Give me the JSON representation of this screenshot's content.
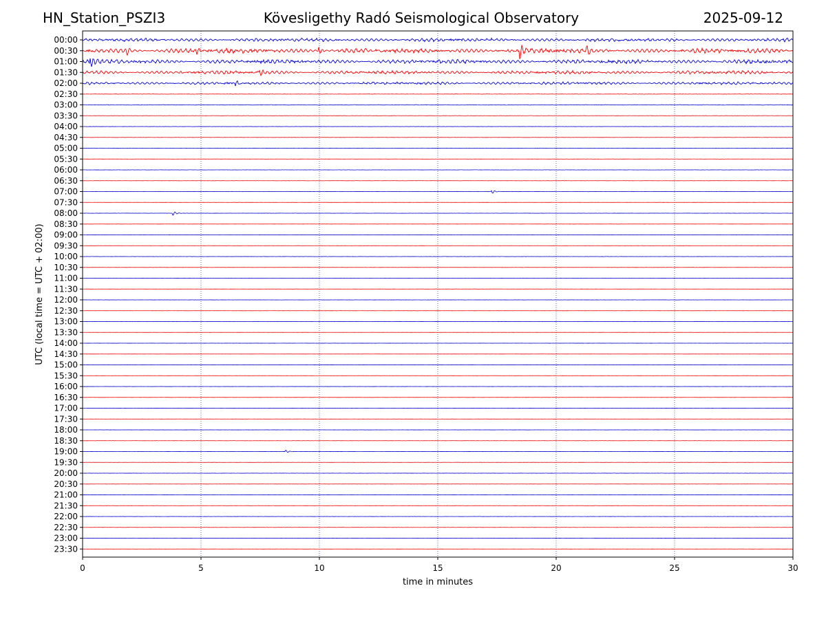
{
  "header": {
    "station": "HN_Station_PSZI3",
    "observatory": "Kövesligethy Radó Seismological Observatory",
    "date": "2025-09-12"
  },
  "chart_data": {
    "type": "line",
    "xlabel": "time in minutes",
    "ylabel": "UTC (local time = UTC + 02:00)",
    "xlim": [
      0,
      30
    ],
    "x_ticks": [
      "0",
      "5",
      "10",
      "15",
      "20",
      "25",
      "30"
    ],
    "x_tick_values": [
      0,
      5,
      10,
      15,
      20,
      25,
      30
    ],
    "grid": "vertical dotted at x ticks",
    "trace_colors": [
      "#0000cc",
      "#ee0000"
    ],
    "row_labels": [
      "00:00",
      "00:30",
      "01:00",
      "01:30",
      "02:00",
      "02:30",
      "03:00",
      "03:30",
      "04:00",
      "04:30",
      "05:00",
      "05:30",
      "06:00",
      "06:30",
      "07:00",
      "07:30",
      "08:00",
      "08:30",
      "09:00",
      "09:30",
      "10:00",
      "10:30",
      "11:00",
      "11:30",
      "12:00",
      "12:30",
      "13:00",
      "13:30",
      "14:00",
      "14:30",
      "15:00",
      "15:30",
      "16:00",
      "16:30",
      "17:00",
      "17:30",
      "18:00",
      "18:30",
      "19:00",
      "19:30",
      "20:00",
      "20:30",
      "21:00",
      "21:30",
      "22:00",
      "22:30",
      "23:00",
      "23:30"
    ],
    "row_activity": [
      3.0,
      4.2,
      3.6,
      3.0,
      2.4,
      0.25,
      0.35,
      0.12,
      0.1,
      0.1,
      0.2,
      0.1,
      0.15,
      0.12,
      0.18,
      0.08,
      0.12,
      0.08,
      0.15,
      0.08,
      0.12,
      0.1,
      0.15,
      0.08,
      0.1,
      0.08,
      0.1,
      0.08,
      0.08,
      0.08,
      0.1,
      0.08,
      0.08,
      0.08,
      0.1,
      0.08,
      0.08,
      0.15,
      0.08,
      0.08,
      0.1,
      0.08,
      0.08,
      0.1,
      0.1,
      0.15,
      0.1,
      0.08
    ],
    "transients": [
      {
        "row": 1,
        "x": 18.5,
        "amp": 10
      },
      {
        "row": 1,
        "x": 21.3,
        "amp": 6
      },
      {
        "row": 1,
        "x": 10.0,
        "amp": 6
      },
      {
        "row": 1,
        "x": 1.9,
        "amp": 5
      },
      {
        "row": 1,
        "x": 4.8,
        "amp": 5
      },
      {
        "row": 2,
        "x": 0.35,
        "amp": 9
      },
      {
        "row": 3,
        "x": 7.5,
        "amp": 5
      },
      {
        "row": 4,
        "x": 6.5,
        "amp": 4
      },
      {
        "row": 14,
        "x": 17.3,
        "amp": 3
      },
      {
        "row": 16,
        "x": 3.85,
        "amp": 3
      },
      {
        "row": 38,
        "x": 8.6,
        "amp": 2
      }
    ]
  }
}
